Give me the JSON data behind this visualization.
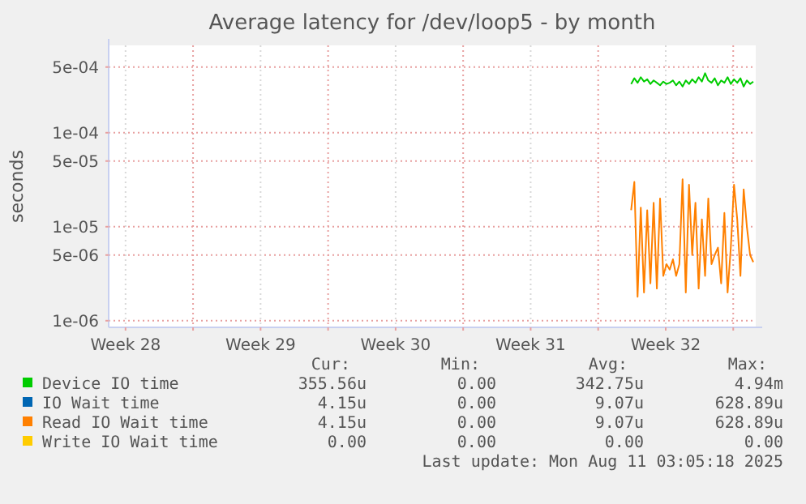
{
  "chart_data": {
    "type": "line",
    "title": "Average latency for /dev/loop5 - by month",
    "ylabel": "seconds",
    "log": "y",
    "grid": true,
    "legend": "bottom",
    "marker": "none",
    "line_style": "solid",
    "xlim": [
      "2025-07-08T15:00",
      "2025-08-11T04:00"
    ],
    "xticks": [
      {
        "value": "2025-07-09T12:00",
        "label": "Week 28"
      },
      {
        "value": "2025-07-13T00:00",
        "label": null
      },
      {
        "value": "2025-07-16T12:00",
        "label": "Week 29"
      },
      {
        "value": "2025-07-20T00:00",
        "label": null
      },
      {
        "value": "2025-07-23T12:00",
        "label": "Week 30"
      },
      {
        "value": "2025-07-27T00:00",
        "label": null
      },
      {
        "value": "2025-07-30T12:00",
        "label": "Week 31"
      },
      {
        "value": "2025-08-03T00:00",
        "label": null
      },
      {
        "value": "2025-08-06T12:00",
        "label": "Week 32"
      },
      {
        "value": "2025-08-10T00:00",
        "label": null
      }
    ],
    "ylim": [
      8.5e-07,
      0.00085
    ],
    "yticks": [
      {
        "value": 1e-06,
        "label": "1e-06"
      },
      {
        "value": 5e-06,
        "label": "5e-06"
      },
      {
        "value": 1e-05,
        "label": "1e-05"
      },
      {
        "value": 5e-05,
        "label": "5e-05"
      },
      {
        "value": 0.0001,
        "label": "1e-04"
      },
      {
        "value": 0.0005,
        "label": "5e-04"
      }
    ],
    "x": [
      "2025-08-04T17:00",
      "2025-08-04T21:00",
      "2025-08-05T01:00",
      "2025-08-05T05:00",
      "2025-08-05T09:00",
      "2025-08-05T13:00",
      "2025-08-05T17:00",
      "2025-08-05T21:00",
      "2025-08-06T01:00",
      "2025-08-06T05:00",
      "2025-08-06T09:00",
      "2025-08-06T13:00",
      "2025-08-06T17:00",
      "2025-08-06T21:00",
      "2025-08-07T01:00",
      "2025-08-07T05:00",
      "2025-08-07T09:00",
      "2025-08-07T13:00",
      "2025-08-07T17:00",
      "2025-08-07T21:00",
      "2025-08-08T01:00",
      "2025-08-08T05:00",
      "2025-08-08T09:00",
      "2025-08-08T13:00",
      "2025-08-08T17:00",
      "2025-08-08T21:00",
      "2025-08-09T01:00",
      "2025-08-09T05:00",
      "2025-08-09T09:00",
      "2025-08-09T13:00",
      "2025-08-09T17:00",
      "2025-08-09T21:00",
      "2025-08-10T01:00",
      "2025-08-10T05:00",
      "2025-08-10T09:00",
      "2025-08-10T13:00",
      "2025-08-10T17:00",
      "2025-08-10T21:00",
      "2025-08-11T01:00"
    ],
    "series": [
      {
        "name": "Device IO time",
        "color": "#00cc00",
        "values": [
          0.00033,
          0.00038,
          0.00034,
          0.00039,
          0.00035,
          0.00037,
          0.00033,
          0.00036,
          0.00034,
          0.00032,
          0.00035,
          0.00033,
          0.00034,
          0.00036,
          0.00032,
          0.00035,
          0.00031,
          0.00036,
          0.00033,
          0.00037,
          0.00034,
          0.00039,
          0.00035,
          0.00043,
          0.00036,
          0.00034,
          0.00038,
          0.00032,
          0.00036,
          0.00034,
          0.00039,
          0.00033,
          0.00037,
          0.00034,
          0.00038,
          0.00031,
          0.00036,
          0.00033,
          0.00035
        ]
      },
      {
        "name": "IO Wait time",
        "color": "#0066b3",
        "values": [
          null,
          null,
          null,
          null,
          null,
          null,
          null,
          null,
          null,
          null,
          null,
          null,
          null,
          null,
          null,
          null,
          null,
          null,
          null,
          null,
          null,
          null,
          null,
          null,
          null,
          null,
          null,
          null,
          null,
          null,
          null,
          null,
          null,
          null,
          null,
          null,
          null,
          null,
          null
        ]
      },
      {
        "name": "Read IO Wait time",
        "color": "#ff8000",
        "values": [
          1.5e-05,
          3e-05,
          1.8e-06,
          1.6e-05,
          2e-06,
          1.5e-05,
          2.5e-06,
          1.8e-05,
          2.2e-06,
          2e-05,
          3e-06,
          4e-06,
          3.5e-06,
          4.5e-06,
          3e-06,
          4e-06,
          3.2e-05,
          2e-06,
          2.8e-05,
          5e-06,
          1.8e-05,
          2.2e-06,
          1.2e-05,
          3e-06,
          2e-05,
          4e-06,
          5e-06,
          6e-06,
          2.5e-06,
          1.4e-05,
          2e-06,
          6e-06,
          2.8e-05,
          1.2e-05,
          3e-06,
          2.5e-05,
          1e-05,
          5e-06,
          4.2e-06
        ]
      },
      {
        "name": "Write IO Wait time",
        "color": "#ffcc00",
        "values": [
          null,
          null,
          null,
          null,
          null,
          null,
          null,
          null,
          null,
          null,
          null,
          null,
          null,
          null,
          null,
          null,
          null,
          null,
          null,
          null,
          null,
          null,
          null,
          null,
          null,
          null,
          null,
          null,
          null,
          null,
          null,
          null,
          null,
          null,
          null,
          null,
          null,
          null,
          null
        ]
      }
    ],
    "annotations": [
      "Cur:",
      "Min:",
      "Avg:",
      "Max:",
      "355.56u",
      "0.00",
      "342.75u",
      "4.94m",
      "4.15u",
      "0.00",
      "9.07u",
      "628.89u",
      "4.15u",
      "0.00",
      "9.07u",
      "628.89u",
      "0.00",
      "0.00",
      "0.00",
      "0.00",
      "Last update: Mon Aug 11 03:05:18 2025"
    ]
  }
}
